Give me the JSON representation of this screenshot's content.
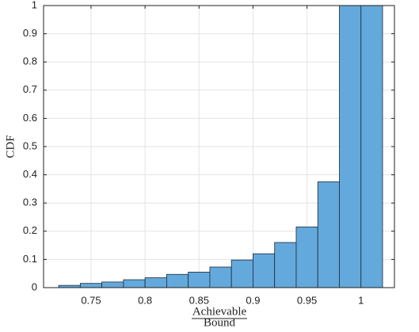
{
  "chart_data": {
    "type": "histogram",
    "xlabel": {
      "numerator": "Achievable",
      "denominator": "Bound"
    },
    "ylabel": "CDF",
    "bins": [
      0.72,
      0.74,
      0.76,
      0.78,
      0.8,
      0.82,
      0.84,
      0.86,
      0.88,
      0.9,
      0.92,
      0.94,
      0.96,
      0.98,
      1.0,
      1.02
    ],
    "values": [
      0.008,
      0.015,
      0.02,
      0.028,
      0.035,
      0.047,
      0.055,
      0.073,
      0.098,
      0.12,
      0.16,
      0.215,
      0.375,
      1,
      1
    ],
    "color": "#64a9db",
    "xlim": [
      0.706,
      1.031
    ],
    "xticks": [
      0.75,
      0.8,
      0.85,
      0.9,
      0.95,
      1
    ],
    "ylim": [
      0,
      1
    ],
    "yticks": [
      0,
      0.1,
      0.2,
      0.3,
      0.4,
      0.5,
      0.6,
      0.7,
      0.8,
      0.9,
      1
    ],
    "grid": true
  }
}
